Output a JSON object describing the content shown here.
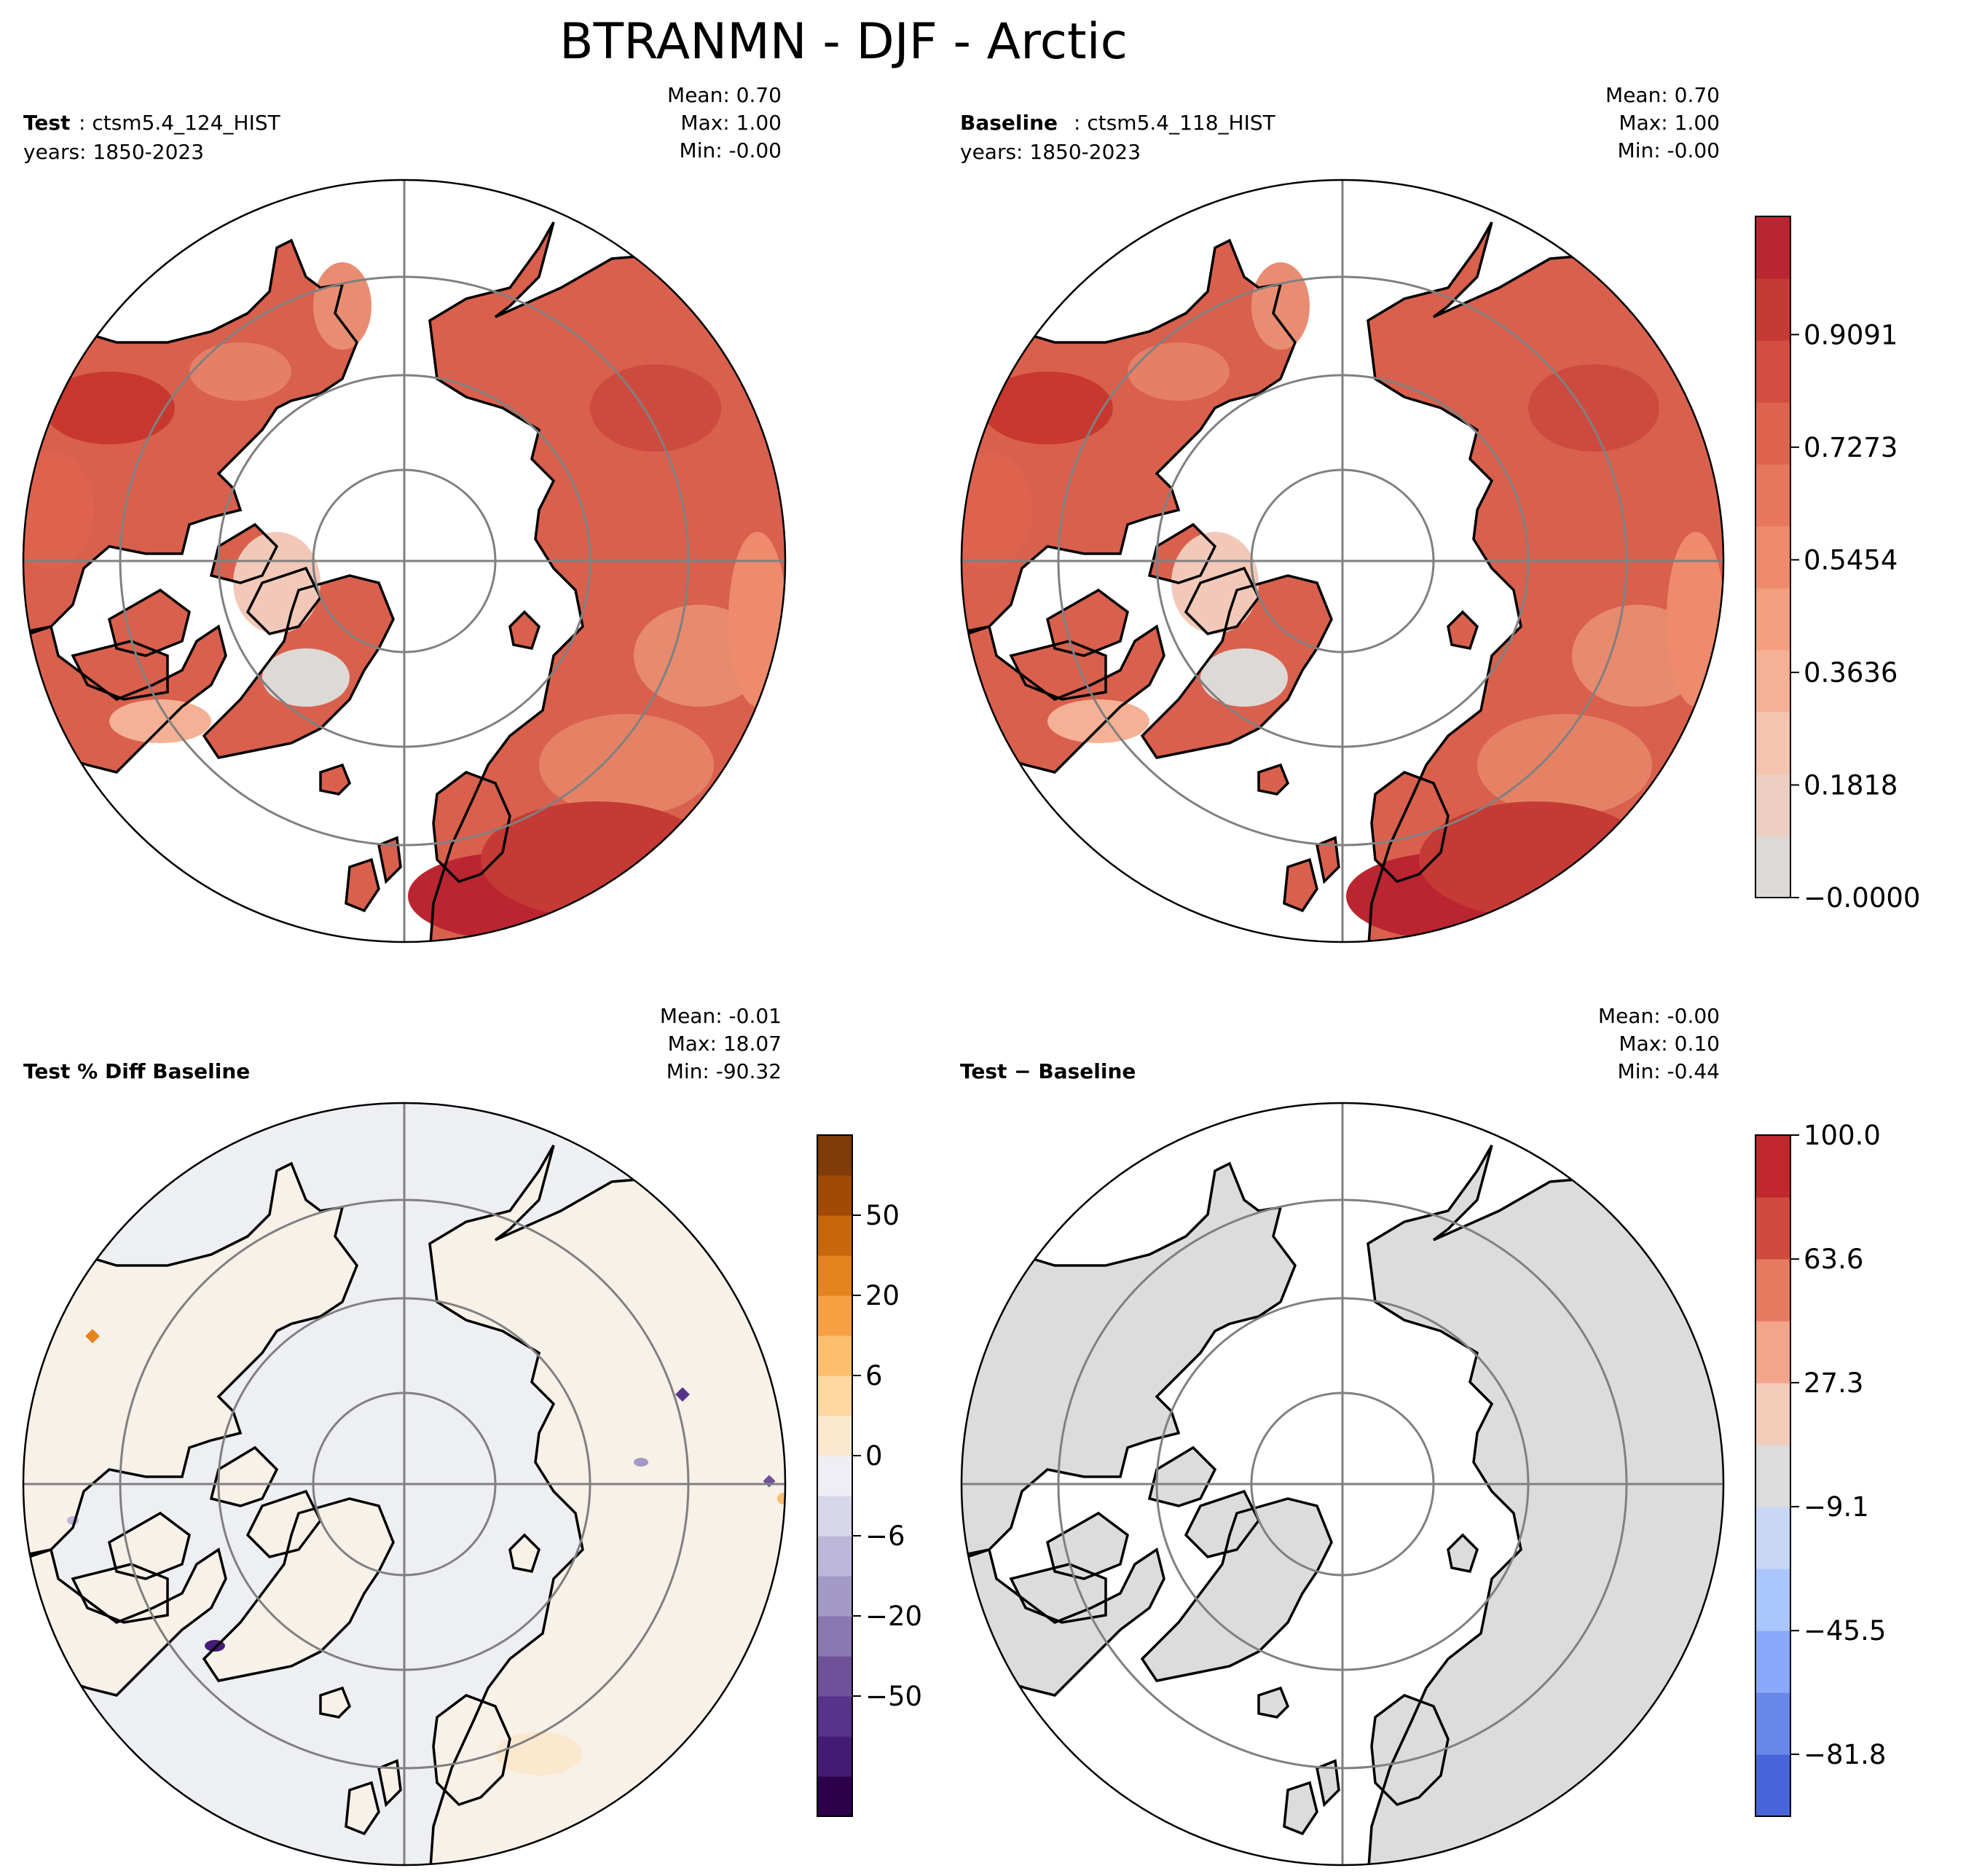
{
  "suptitle": "BTRANMN - DJF - Arctic",
  "panels": {
    "test": {
      "label": "Test",
      "case": ": ctsm5.4_124_HIST",
      "years": "years: 1850-2023",
      "stats": {
        "mean": "Mean:  0.70",
        "max": "Max:  1.00",
        "min": "Min: -0.00"
      }
    },
    "baseline": {
      "label": "Baseline",
      "case": ": ctsm5.4_118_HIST",
      "years": "years: 1850-2023",
      "stats": {
        "mean": "Mean:  0.70",
        "max": "Max:  1.00",
        "min": "Min: -0.00"
      }
    },
    "pctdiff": {
      "label": "Test % Diff Baseline",
      "stats": {
        "mean": "Mean: -0.01",
        "max": "Max: 18.07",
        "min": "Min: -90.32"
      }
    },
    "diff": {
      "label": "Test − Baseline",
      "stats": {
        "mean": "Mean: -0.00",
        "max": "Max:  0.10",
        "min": "Min: -0.44"
      }
    }
  },
  "colorbars": {
    "main": {
      "ticks": [
        "−0.0000",
        "0.1818",
        "0.3636",
        "0.5454",
        "0.7273",
        "0.9091"
      ],
      "tick_values": [
        0,
        0.1818,
        0.3636,
        0.5454,
        0.7273,
        0.9091
      ],
      "range": [
        0,
        1.1
      ],
      "colors": [
        "#ddd9d6",
        "#eccfc2",
        "#f4c4ae",
        "#f5b196",
        "#f39f80",
        "#ee8b6d",
        "#e6775c",
        "#dd634e",
        "#d24e41",
        "#c63a35",
        "#ba2531"
      ]
    },
    "pct": {
      "ticks": [
        "−50",
        "−20",
        "−6",
        "0",
        "6",
        "20",
        "50"
      ],
      "tick_levels": [
        1.5,
        3.5,
        5.5,
        7.5,
        9.5,
        11.5,
        13.5
      ],
      "levels": 15,
      "colors": [
        "#2d004b",
        "#441c74",
        "#58338b",
        "#6e5199",
        "#8877b0",
        "#a39ac6",
        "#bdb8d9",
        "#d7d6ea",
        "#eeeef4",
        "#fbe8cf",
        "#fed8a0",
        "#fdbf6f",
        "#f6a144",
        "#e5831c",
        "#c8660c",
        "#a04a05",
        "#7f3b08"
      ]
    },
    "diff": {
      "ticks": [
        "−81.8",
        "−45.5",
        "−9.1",
        "27.3",
        "63.6",
        "100.0"
      ],
      "tick_values": [
        -81.8,
        -45.5,
        -9.1,
        27.3,
        63.6,
        100.0
      ],
      "range": [
        -100,
        100
      ],
      "colors": [
        "#4764d8",
        "#6887ea",
        "#8aa9fa",
        "#abc6fd",
        "#c8d7f4",
        "#dcdcdc",
        "#f3ccba",
        "#f2a58a",
        "#e57a61",
        "#cf4b3e",
        "#c0282d"
      ]
    }
  }
}
